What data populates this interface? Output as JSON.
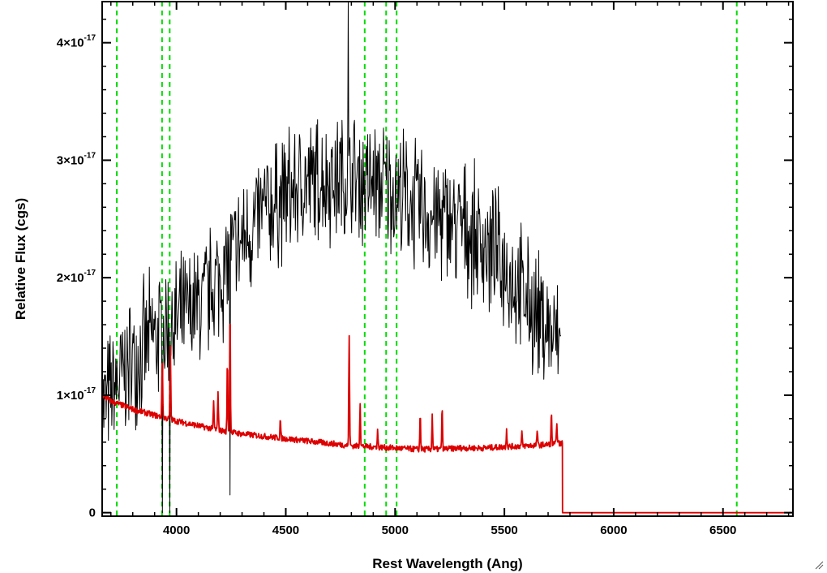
{
  "chart_data": {
    "type": "line",
    "xlabel": "Rest Wavelength (Ang)",
    "ylabel": "Relative Flux (cgs)",
    "xlim": [
      3660,
      6820
    ],
    "ylim": [
      -3e-19,
      4.35e-17
    ],
    "x_ticks": [
      {
        "value": 4000,
        "label": "4000"
      },
      {
        "value": 4500,
        "label": "4500"
      },
      {
        "value": 5000,
        "label": "5000"
      },
      {
        "value": 5500,
        "label": "5500"
      },
      {
        "value": 6000,
        "label": "6000"
      },
      {
        "value": 6500,
        "label": "6500"
      }
    ],
    "y_ticks": [
      {
        "value": 0,
        "mantissa": "0",
        "exponent": ""
      },
      {
        "value": 1e-17,
        "mantissa": "1×10",
        "exponent": "-17"
      },
      {
        "value": 2e-17,
        "mantissa": "2×10",
        "exponent": "-17"
      },
      {
        "value": 3e-17,
        "mantissa": "3×10",
        "exponent": "-17"
      },
      {
        "value": 4e-17,
        "mantissa": "4×10",
        "exponent": "-17"
      }
    ],
    "reference_lines": [
      3727,
      3934,
      3969,
      4861,
      4959,
      5007,
      6563
    ],
    "reference_line_color": "#00dd00",
    "series": [
      {
        "color": "#000000",
        "style": "noisy",
        "envelope_x": [
          3660,
          3700,
          3800,
          3900,
          4000,
          4100,
          4200,
          4300,
          4400,
          4500,
          4600,
          4700,
          4800,
          4900,
          5000,
          5100,
          5200,
          5300,
          5400,
          5500,
          5600,
          5700,
          5760
        ],
        "envelope_y": [
          9e-18,
          1e-17,
          1.3e-17,
          1.5e-17,
          1.6e-17,
          1.75e-17,
          2e-17,
          2.3e-17,
          2.55e-17,
          2.7e-17,
          2.8e-17,
          2.85e-17,
          2.85e-17,
          2.8e-17,
          2.75e-17,
          2.6e-17,
          2.5e-17,
          2.45e-17,
          2.3e-17,
          2.1e-17,
          1.8e-17,
          1.55e-17,
          1.4e-17
        ],
        "noise": 5.5e-18,
        "spikes": [
          {
            "x": 4787,
            "y": 4.35e-17
          },
          {
            "x": 4245,
            "y": 1.5e-18
          },
          {
            "x": 3936,
            "y": 0.0
          },
          {
            "x": 3970,
            "y": 0.0
          }
        ]
      },
      {
        "color": "#dd0000",
        "style": "continuum",
        "points": [
          [
            3660,
            1e-17
          ],
          [
            3700,
            9.5e-18
          ],
          [
            3800,
            8.8e-18
          ],
          [
            3900,
            8.3e-18
          ],
          [
            4000,
            7.8e-18
          ],
          [
            4100,
            7.4e-18
          ],
          [
            4200,
            7e-18
          ],
          [
            4300,
            6.7e-18
          ],
          [
            4400,
            6.5e-18
          ],
          [
            4500,
            6.3e-18
          ],
          [
            4600,
            6.1e-18
          ],
          [
            4700,
            5.9e-18
          ],
          [
            4800,
            5.7e-18
          ],
          [
            4900,
            5.6e-18
          ],
          [
            5000,
            5.5e-18
          ],
          [
            5100,
            5.4e-18
          ],
          [
            5200,
            5.4e-18
          ],
          [
            5300,
            5.5e-18
          ],
          [
            5400,
            5.5e-18
          ],
          [
            5500,
            5.6e-18
          ],
          [
            5600,
            5.7e-18
          ],
          [
            5700,
            5.8e-18
          ],
          [
            5765,
            5.9e-18
          ],
          [
            5766,
            0.0
          ],
          [
            6820,
            0.0
          ]
        ],
        "emission_lines": [
          {
            "x": 3935,
            "peak": 1.35e-17
          },
          {
            "x": 3972,
            "peak": 1.4e-17
          },
          {
            "x": 4170,
            "peak": 9.5e-18
          },
          {
            "x": 4190,
            "peak": 1.05e-17
          },
          {
            "x": 4233,
            "peak": 1.3e-17
          },
          {
            "x": 4245,
            "peak": 1.75e-17
          },
          {
            "x": 4475,
            "peak": 8e-18
          },
          {
            "x": 4790,
            "peak": 1.52e-17
          },
          {
            "x": 4840,
            "peak": 9.5e-18
          },
          {
            "x": 4920,
            "peak": 7e-18
          },
          {
            "x": 5115,
            "peak": 8.5e-18
          },
          {
            "x": 5170,
            "peak": 8.3e-18
          },
          {
            "x": 5215,
            "peak": 9e-18
          },
          {
            "x": 5510,
            "peak": 7.2e-18
          },
          {
            "x": 5580,
            "peak": 6.8e-18
          },
          {
            "x": 5650,
            "peak": 7e-18
          },
          {
            "x": 5715,
            "peak": 8.5e-18
          },
          {
            "x": 5740,
            "peak": 7.8e-18
          }
        ]
      }
    ]
  }
}
